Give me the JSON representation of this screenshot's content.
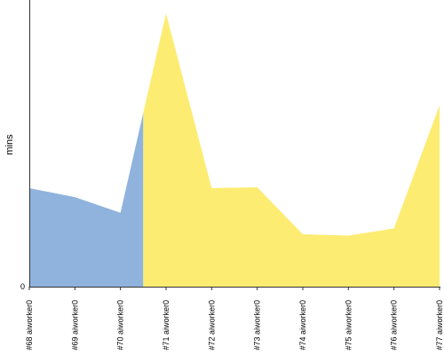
{
  "chart_data": {
    "type": "area",
    "ylabel": "mins",
    "y_ticks": [
      "0"
    ],
    "ylim": [
      0,
      64
    ],
    "categories": [
      "#68 aiworker0",
      "#69 aiworker0",
      "#70 aiworker0",
      "#71 aiworker0",
      "#72 aiworker0",
      "#73 aiworker0",
      "#74 aiworker0",
      "#75 aiworker0",
      "#76 aiworker0",
      "#77 aiworker0"
    ],
    "values": [
      22,
      20,
      16.5,
      61,
      22,
      22.2,
      11.7,
      11.4,
      13,
      40.5
    ],
    "series_colors": {
      "before": "#8fb3dc",
      "after": "#fdec72"
    },
    "split_after_index": 2,
    "split_at_x": 2.5,
    "split_value": 38.8
  }
}
